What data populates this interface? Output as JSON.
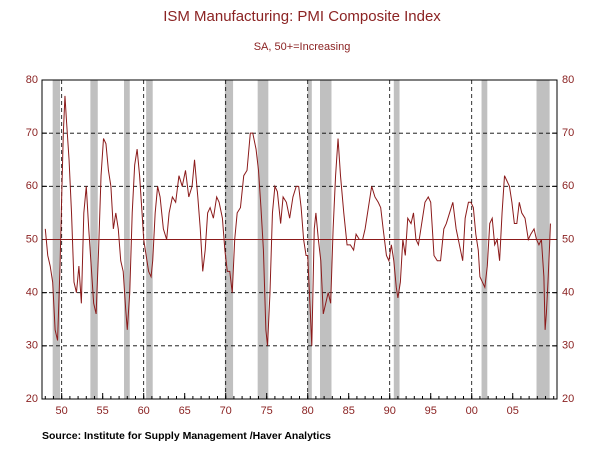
{
  "chart_data": {
    "type": "line",
    "title": "ISM Manufacturing: PMI Composite Index",
    "subtitle": "SA, 50+=Increasing",
    "source": "Source:  Institute for Supply Management /Haver Analytics",
    "color": "#8b1a1a",
    "recession_color": "#c0c0c0",
    "reference_line": 50,
    "xlim": [
      1947.6,
      2010.4
    ],
    "ylim": [
      20,
      80
    ],
    "yticks": [
      20,
      30,
      40,
      50,
      60,
      70,
      80
    ],
    "xticks": [
      {
        "value": 1950,
        "label": "50"
      },
      {
        "value": 1955,
        "label": "55"
      },
      {
        "value": 1960,
        "label": "60"
      },
      {
        "value": 1965,
        "label": "65"
      },
      {
        "value": 1970,
        "label": "70"
      },
      {
        "value": 1975,
        "label": "75"
      },
      {
        "value": 1980,
        "label": "80"
      },
      {
        "value": 1985,
        "label": "85"
      },
      {
        "value": 1990,
        "label": "90"
      },
      {
        "value": 1995,
        "label": "95"
      },
      {
        "value": 2000,
        "label": "00"
      },
      {
        "value": 2005,
        "label": "05"
      }
    ],
    "recessions": [
      [
        1948.9,
        1949.8
      ],
      [
        1953.5,
        1954.4
      ],
      [
        1957.6,
        1958.3
      ],
      [
        1960.3,
        1961.1
      ],
      [
        1969.9,
        1970.9
      ],
      [
        1973.9,
        1975.2
      ],
      [
        1980.0,
        1980.5
      ],
      [
        1981.5,
        1982.9
      ],
      [
        1990.5,
        1991.2
      ],
      [
        2001.2,
        2001.9
      ],
      [
        2007.9,
        2009.5
      ]
    ],
    "x": [
      1948.0,
      1948.3,
      1948.6,
      1948.9,
      1949.2,
      1949.5,
      1949.8,
      1950.0,
      1950.2,
      1950.4,
      1950.6,
      1950.9,
      1951.2,
      1951.5,
      1951.8,
      1952.1,
      1952.4,
      1952.7,
      1953.0,
      1953.3,
      1953.6,
      1953.9,
      1954.2,
      1954.5,
      1954.8,
      1955.1,
      1955.4,
      1955.7,
      1956.0,
      1956.3,
      1956.6,
      1956.9,
      1957.2,
      1957.5,
      1957.8,
      1958.0,
      1958.3,
      1958.6,
      1958.9,
      1959.2,
      1959.5,
      1959.8,
      1960.0,
      1960.3,
      1960.6,
      1960.9,
      1961.1,
      1961.4,
      1961.7,
      1962.0,
      1962.4,
      1962.8,
      1963.1,
      1963.5,
      1963.9,
      1964.3,
      1964.7,
      1965.1,
      1965.5,
      1965.9,
      1966.2,
      1966.6,
      1966.9,
      1967.2,
      1967.5,
      1967.8,
      1968.1,
      1968.5,
      1968.9,
      1969.2,
      1969.6,
      1969.9,
      1970.2,
      1970.5,
      1970.8,
      1971.1,
      1971.4,
      1971.8,
      1972.2,
      1972.6,
      1973.0,
      1973.3,
      1973.7,
      1974.0,
      1974.3,
      1974.6,
      1974.9,
      1975.1,
      1975.4,
      1975.7,
      1976.0,
      1976.3,
      1976.7,
      1977.0,
      1977.4,
      1977.8,
      1978.2,
      1978.6,
      1978.9,
      1979.2,
      1979.5,
      1979.8,
      1980.0,
      1980.3,
      1980.5,
      1980.8,
      1981.0,
      1981.3,
      1981.6,
      1981.9,
      1982.2,
      1982.5,
      1982.8,
      1983.1,
      1983.4,
      1983.7,
      1984.0,
      1984.4,
      1984.8,
      1985.2,
      1985.6,
      1985.9,
      1986.3,
      1986.7,
      1987.0,
      1987.4,
      1987.8,
      1988.2,
      1988.6,
      1988.9,
      1989.2,
      1989.6,
      1989.9,
      1990.2,
      1990.5,
      1990.8,
      1991.0,
      1991.3,
      1991.6,
      1991.9,
      1992.2,
      1992.6,
      1992.9,
      1993.2,
      1993.5,
      1993.9,
      1994.3,
      1994.7,
      1995.0,
      1995.4,
      1995.8,
      1996.2,
      1996.6,
      1996.9,
      1997.3,
      1997.7,
      1998.1,
      1998.5,
      1998.9,
      1999.2,
      1999.6,
      1999.9,
      2000.2,
      2000.5,
      2000.8,
      2001.0,
      2001.3,
      2001.6,
      2001.9,
      2002.2,
      2002.5,
      2002.8,
      2003.1,
      2003.4,
      2003.7,
      2004.0,
      2004.3,
      2004.6,
      2004.9,
      2005.2,
      2005.5,
      2005.8,
      2006.1,
      2006.5,
      2006.9,
      2007.2,
      2007.6,
      2007.9,
      2008.2,
      2008.5,
      2008.8,
      2008.95,
      2009.1,
      2009.3,
      2009.5,
      2009.6
    ],
    "values": [
      52,
      47,
      45,
      42,
      33,
      31,
      45,
      58,
      70,
      77,
      72,
      65,
      55,
      42,
      40,
      45,
      38,
      55,
      60,
      52,
      45,
      38,
      36,
      48,
      62,
      69,
      68,
      63,
      60,
      52,
      55,
      52,
      46,
      44,
      37,
      33,
      40,
      55,
      64,
      67,
      62,
      55,
      50,
      47,
      44,
      43,
      46,
      55,
      60,
      58,
      52,
      50,
      55,
      58,
      57,
      62,
      60,
      63,
      58,
      60,
      65,
      58,
      52,
      44,
      48,
      55,
      56,
      54,
      58,
      57,
      54,
      48,
      44,
      44,
      40,
      50,
      55,
      56,
      62,
      63,
      70,
      70,
      67,
      63,
      56,
      48,
      33,
      30,
      40,
      55,
      60,
      59,
      53,
      58,
      57,
      54,
      58,
      60,
      60,
      56,
      50,
      47,
      47,
      37,
      30,
      52,
      55,
      50,
      46,
      36,
      38,
      40,
      38,
      52,
      62,
      69,
      62,
      55,
      49,
      49,
      48,
      51,
      50,
      50,
      52,
      56,
      60,
      58,
      57,
      56,
      52,
      47,
      46,
      49,
      46,
      41,
      39,
      42,
      50,
      47,
      54,
      53,
      55,
      50,
      49,
      53,
      57,
      58,
      57,
      47,
      46,
      46,
      52,
      53,
      55,
      57,
      52,
      49,
      46,
      54,
      57,
      57,
      56,
      51,
      48,
      43,
      42,
      41,
      45,
      53,
      54,
      49,
      50,
      46,
      55,
      62,
      61,
      60,
      57,
      53,
      53,
      57,
      55,
      54,
      50,
      51,
      52,
      50,
      49,
      50,
      43,
      33,
      36,
      42,
      49,
      53
    ]
  }
}
